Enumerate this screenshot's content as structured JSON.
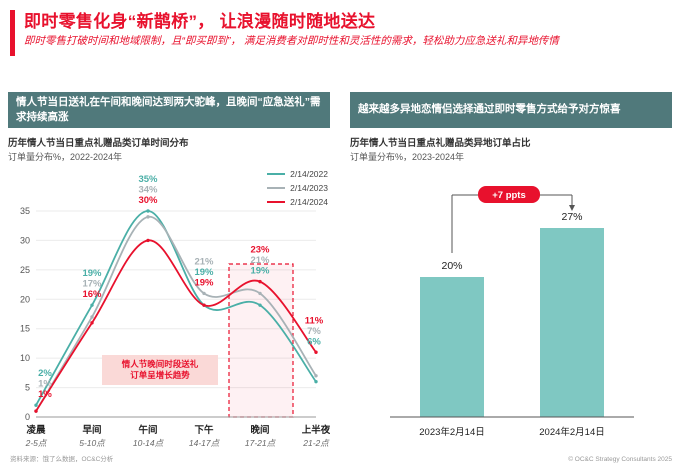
{
  "page": {
    "title": "即时零售化身“新鹊桥”， 让浪漫随时随地送达",
    "subtitle": "即时零售打破时间和地域限制，且“即买即到”， 满足消费者对即时性和灵活性的需求，轻松助力应急送礼和异地传情",
    "footer_left": "资料来源：饿了么数据，OC&C分析",
    "footer_right": "© OC&C Strategy Consultants 2025"
  },
  "left_panel": {
    "header": "情人节当日送礼在午间和晚间达到两大驼峰，且晚间“应急送礼”需求持续高涨",
    "chart_title": "历年情人节当日重点礼赠品类订单时间分布",
    "chart_subtitle": "订单量分布%，2022-2024年"
  },
  "right_panel": {
    "header": "越来越多异地恋情侣选择通过即时零售方式给予对方惊喜",
    "chart_title": "历年情人节当日重点礼赠品类异地订单占比",
    "chart_subtitle": "订单量分布%，2023-2024年"
  },
  "colors": {
    "accent_red": "#E8112D",
    "header_bg": "#50797B",
    "teal_line": "#4AAFA7",
    "gray_line": "#A8B2B6",
    "bar_teal": "#7FC8C2"
  },
  "chart_data": [
    {
      "type": "line",
      "title": "历年情人节当日重点礼赠品类订单时间分布",
      "subtitle": "订单量分布%，2022-2024年",
      "categories": [
        "凌晨",
        "早间",
        "午间",
        "下午",
        "晚间",
        "上半夜"
      ],
      "category_sublabels": [
        "2-5点",
        "5-10点",
        "10-14点",
        "14-17点",
        "17-21点",
        "21-2点"
      ],
      "series": [
        {
          "name": "2/14/2022",
          "color": "#4AAFA7",
          "values": [
            2,
            19,
            35,
            19,
            19,
            6
          ]
        },
        {
          "name": "2/14/2023",
          "color": "#A8B2B6",
          "values": [
            1,
            17,
            34,
            21,
            21,
            7
          ]
        },
        {
          "name": "2/14/2024",
          "color": "#E8112D",
          "values": [
            1,
            16,
            30,
            19,
            23,
            11
          ]
        }
      ],
      "ylim": [
        0,
        35
      ],
      "yticks": [
        0,
        5,
        10,
        15,
        20,
        25,
        30,
        35
      ],
      "grid": true,
      "legend_position": "top-right",
      "highlight_category": "晚间",
      "annotation_lines": [
        "情人节晚间时段送礼",
        "订单呈增长趋势"
      ]
    },
    {
      "type": "bar",
      "title": "历年情人节当日重点礼赠品类异地订单占比",
      "subtitle": "订单量分布%，2023-2024年",
      "categories": [
        "2023年2月14日",
        "2024年2月14日"
      ],
      "values": [
        20,
        27
      ],
      "bar_color": "#7FC8C2",
      "delta_annotation": "+7 ppts"
    }
  ]
}
